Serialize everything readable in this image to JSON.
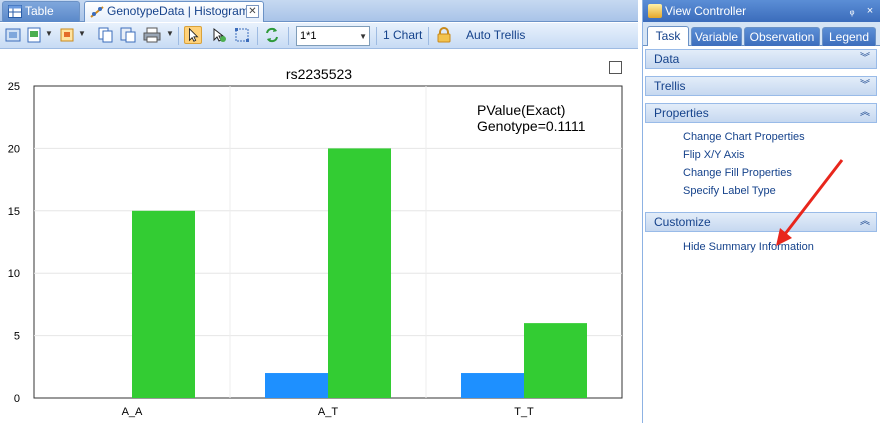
{
  "tabs": [
    {
      "label": "Table"
    },
    {
      "label": "GenotypeData | Histogram"
    }
  ],
  "toolbar": {
    "layout_value": "1*1",
    "chart_count": "1 Chart",
    "trellis": "Auto Trellis"
  },
  "chart": {
    "title": "rs2235523",
    "summary_line1": "PValue(Exact)",
    "summary_line2": "Genotype=0.1111"
  },
  "chart_data": {
    "type": "bar",
    "title": "rs2235523",
    "categories": [
      "A_A",
      "A_T",
      "T_T"
    ],
    "series": [
      {
        "values": [
          0,
          2,
          2
        ],
        "color": "#1e90ff"
      },
      {
        "values": [
          15,
          20,
          6
        ],
        "color": "#33cc33"
      }
    ],
    "ylim": [
      0,
      25
    ],
    "yticks": [
      0,
      5,
      10,
      15,
      20,
      25
    ],
    "grid": true,
    "annotation": "PValue(Exact) Genotype=0.1111"
  },
  "panel": {
    "title": "View Controller",
    "pin": "ᵩ",
    "close": "×",
    "tabs": [
      "Task",
      "Variable",
      "Observation",
      "Legend"
    ],
    "sections": {
      "data": "Data",
      "trellis": "Trellis",
      "properties": "Properties",
      "customize": "Customize"
    },
    "properties_links": [
      "Change Chart Properties",
      "Flip X/Y Axis",
      "Change Fill Properties",
      "Specify Label Type"
    ],
    "customize_links": [
      "Hide Summary Information"
    ]
  },
  "colors": {
    "accent": "#15428b",
    "bar_blue": "#1e90ff",
    "bar_green": "#33cc33",
    "arrow": "#e8261c"
  }
}
